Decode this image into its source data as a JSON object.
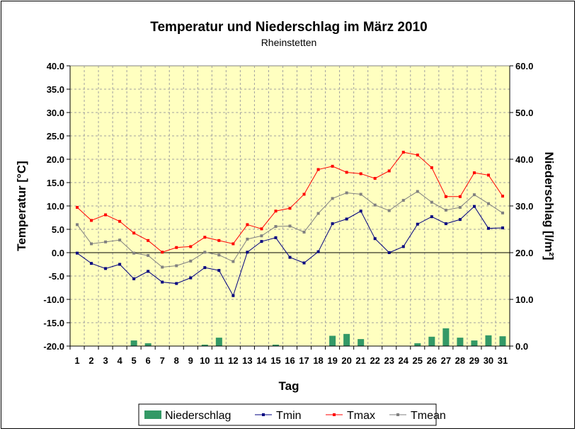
{
  "chart_data": {
    "type": "bar+line",
    "title": "Temperatur und Niederschlag im März 2010",
    "subtitle": "Rheinstetten",
    "xlabel": "Tag",
    "ylabel_left": "Temperatur [°C]",
    "ylabel_right": "Niederschlag [l/m²]",
    "ylim_left": [
      -20,
      40
    ],
    "ylim_right": [
      0,
      60
    ],
    "yticks_left": [
      "-20.0",
      "-15.0",
      "-10.0",
      "-5.0",
      "0.0",
      "5.0",
      "10.0",
      "15.0",
      "20.0",
      "25.0",
      "30.0",
      "35.0",
      "40.0"
    ],
    "yticks_right": [
      "0.0",
      "10.0",
      "20.0",
      "30.0",
      "40.0",
      "50.0",
      "60.0"
    ],
    "categories": [
      "1",
      "2",
      "3",
      "4",
      "5",
      "6",
      "7",
      "8",
      "9",
      "10",
      "11",
      "12",
      "13",
      "14",
      "15",
      "16",
      "17",
      "18",
      "19",
      "20",
      "21",
      "22",
      "23",
      "24",
      "25",
      "26",
      "27",
      "28",
      "29",
      "30",
      "31"
    ],
    "grid": true,
    "legend": "bottom",
    "bar_series": {
      "name": "Niederschlag",
      "color": "#339966",
      "values": [
        0,
        0,
        0,
        0,
        1.2,
        0.6,
        0,
        0,
        0,
        0.3,
        1.8,
        0,
        0,
        0,
        0.3,
        0,
        0,
        0,
        2.2,
        2.6,
        1.5,
        0,
        0,
        0,
        0.6,
        2.0,
        3.8,
        1.8,
        1.2,
        2.3,
        2.1
      ]
    },
    "series": [
      {
        "name": "Tmin",
        "color": "#000080",
        "values": [
          -0.1,
          -2.3,
          -3.4,
          -2.5,
          -5.6,
          -4.0,
          -6.3,
          -6.6,
          -5.4,
          -3.2,
          -3.8,
          -9.2,
          0.1,
          2.4,
          3.2,
          -1.0,
          -2.2,
          0.2,
          6.2,
          7.2,
          8.9,
          3.0,
          0.0,
          1.3,
          6.1,
          7.7,
          6.2,
          7.1,
          9.9,
          5.2,
          5.3
        ]
      },
      {
        "name": "Tmax",
        "color": "#ff0000",
        "values": [
          9.7,
          6.9,
          8.1,
          6.7,
          4.2,
          2.6,
          0.1,
          1.1,
          1.3,
          3.3,
          2.6,
          1.9,
          6.0,
          5.1,
          8.9,
          9.5,
          12.5,
          17.8,
          18.5,
          17.2,
          16.9,
          15.9,
          17.5,
          21.5,
          20.9,
          18.2,
          12.0,
          12.0,
          17.1,
          16.6,
          12.1
        ]
      },
      {
        "name": "Tmean",
        "color": "#808080",
        "values": [
          6.0,
          1.9,
          2.3,
          2.7,
          -0.1,
          -0.6,
          -3.1,
          -2.8,
          -1.8,
          0.1,
          -0.5,
          -1.9,
          2.9,
          3.6,
          5.6,
          5.7,
          4.4,
          8.4,
          11.6,
          12.8,
          12.5,
          10.2,
          9.0,
          11.2,
          13.1,
          10.8,
          9.1,
          9.7,
          12.4,
          10.5,
          8.5
        ]
      }
    ]
  }
}
